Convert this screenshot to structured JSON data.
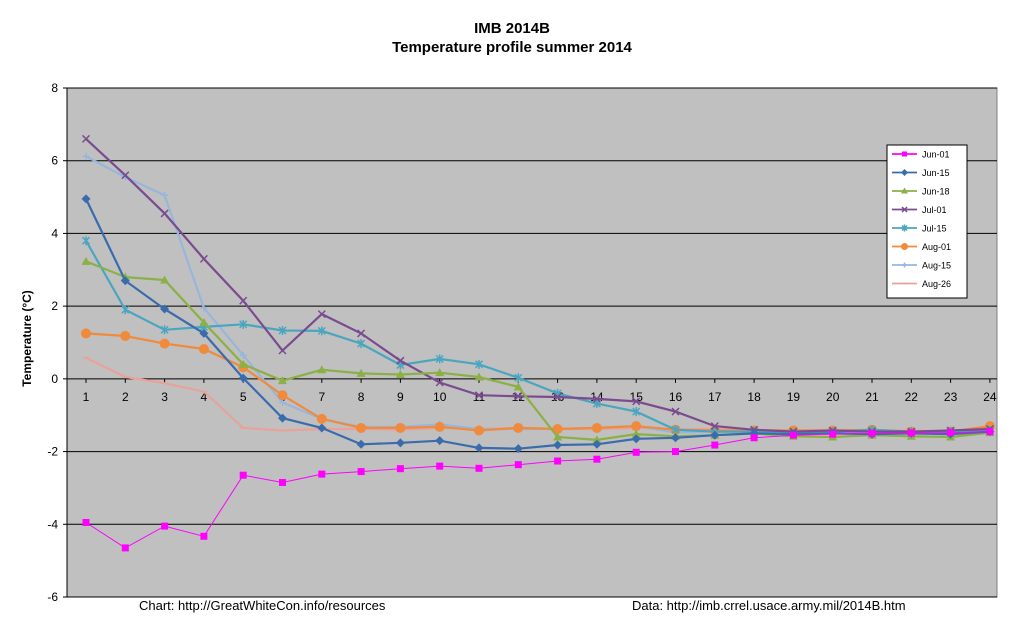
{
  "title": "IMB 2014B",
  "subtitle": "Temperature profile summer 2014",
  "footer": {
    "left": "Chart: http://GreatWhiteCon.info/resources",
    "right": "Data:  http://imb.crrel.usace.army.mil/2014B.htm"
  },
  "chart_data": {
    "type": "line",
    "title": "IMB 2014B",
    "subtitle": "Temperature profile summer 2014",
    "xlabel": "",
    "ylabel": "Temperature (°C)",
    "ylim": [
      -6,
      8
    ],
    "yticks": [
      -6,
      -4,
      -2,
      0,
      2,
      4,
      6,
      8
    ],
    "categories": [
      "1",
      "2",
      "3",
      "4",
      "5",
      "6",
      "7",
      "8",
      "9",
      "10",
      "11",
      "12",
      "13",
      "14",
      "15",
      "16",
      "17",
      "18",
      "19",
      "20",
      "21",
      "22",
      "23",
      "24"
    ],
    "grid": "horizontal",
    "background": "#c0c0c0",
    "legend_position": "right",
    "series": [
      {
        "name": "Jun-01",
        "color": "#ff00ff",
        "marker": "square",
        "values": [
          -3.95,
          -4.65,
          -4.05,
          -4.33,
          -2.65,
          -2.85,
          -2.62,
          -2.55,
          -2.47,
          -2.4,
          -2.46,
          -2.36,
          -2.26,
          -2.21,
          -2.02,
          -2.0,
          -1.82,
          -1.62,
          -1.55,
          -1.52,
          -1.5,
          -1.49,
          -1.48,
          -1.45
        ]
      },
      {
        "name": "Jun-15",
        "color": "#3a6cac",
        "marker": "diamond",
        "values": [
          4.95,
          2.7,
          1.92,
          1.25,
          0.02,
          -1.08,
          -1.35,
          -1.8,
          -1.76,
          -1.7,
          -1.9,
          -1.92,
          -1.82,
          -1.8,
          -1.65,
          -1.62,
          -1.55,
          -1.5,
          -1.52,
          -1.5,
          -1.52,
          -1.5,
          -1.52,
          -1.45
        ]
      },
      {
        "name": "Jun-18",
        "color": "#8ab046",
        "marker": "triangle",
        "values": [
          3.23,
          2.8,
          2.72,
          1.55,
          0.4,
          -0.05,
          0.25,
          0.15,
          0.12,
          0.17,
          0.05,
          -0.22,
          -1.6,
          -1.68,
          -1.52,
          -1.58,
          -1.55,
          -1.5,
          -1.58,
          -1.6,
          -1.55,
          -1.58,
          -1.6,
          -1.48
        ]
      },
      {
        "name": "Jul-01",
        "color": "#7a4b8f",
        "marker": "x",
        "values": [
          6.6,
          5.6,
          4.55,
          3.3,
          2.15,
          0.78,
          1.78,
          1.25,
          0.5,
          -0.1,
          -0.45,
          -0.48,
          -0.5,
          -0.55,
          -0.62,
          -0.9,
          -1.3,
          -1.4,
          -1.45,
          -1.42,
          -1.45,
          -1.45,
          -1.42,
          -1.38
        ]
      },
      {
        "name": "Jul-15",
        "color": "#4aa6c0",
        "marker": "asterisk",
        "values": [
          3.8,
          1.9,
          1.35,
          1.43,
          1.5,
          1.33,
          1.32,
          0.97,
          0.38,
          0.55,
          0.4,
          0.03,
          -0.4,
          -0.68,
          -0.9,
          -1.4,
          -1.45,
          -1.45,
          -1.5,
          -1.45,
          -1.4,
          -1.45,
          -1.45,
          -1.42
        ]
      },
      {
        "name": "Aug-01",
        "color": "#f08a3c",
        "marker": "circle",
        "values": [
          1.25,
          1.18,
          0.97,
          0.82,
          0.32,
          -0.45,
          -1.1,
          -1.35,
          -1.35,
          -1.32,
          -1.42,
          -1.35,
          -1.38,
          -1.35,
          -1.3,
          -1.4,
          -1.42,
          -1.42,
          -1.42,
          -1.42,
          -1.4,
          -1.45,
          -1.45,
          -1.3
        ]
      },
      {
        "name": "Aug-15",
        "color": "#98b6dc",
        "marker": "plus",
        "values": [
          6.12,
          5.55,
          5.05,
          1.95,
          0.65,
          -0.65,
          -1.1,
          -1.32,
          -1.32,
          -1.25,
          -1.38,
          -1.38,
          -1.38,
          -1.35,
          -1.3,
          -1.48,
          -1.45,
          -1.45,
          -1.48,
          -1.45,
          -1.45,
          -1.45,
          -1.48,
          -1.32
        ]
      },
      {
        "name": "Aug-26",
        "color": "#e8a29a",
        "marker": "dash",
        "values": [
          0.58,
          0.05,
          -0.12,
          -0.35,
          -1.35,
          -1.42,
          -1.38,
          -1.38,
          -1.4,
          -1.35,
          -1.38,
          -1.35,
          -1.38,
          -1.38,
          -1.35,
          -1.38,
          -1.38,
          -1.4,
          -1.42,
          -1.4,
          -1.42,
          -1.42,
          -1.45,
          -1.32
        ]
      }
    ]
  }
}
